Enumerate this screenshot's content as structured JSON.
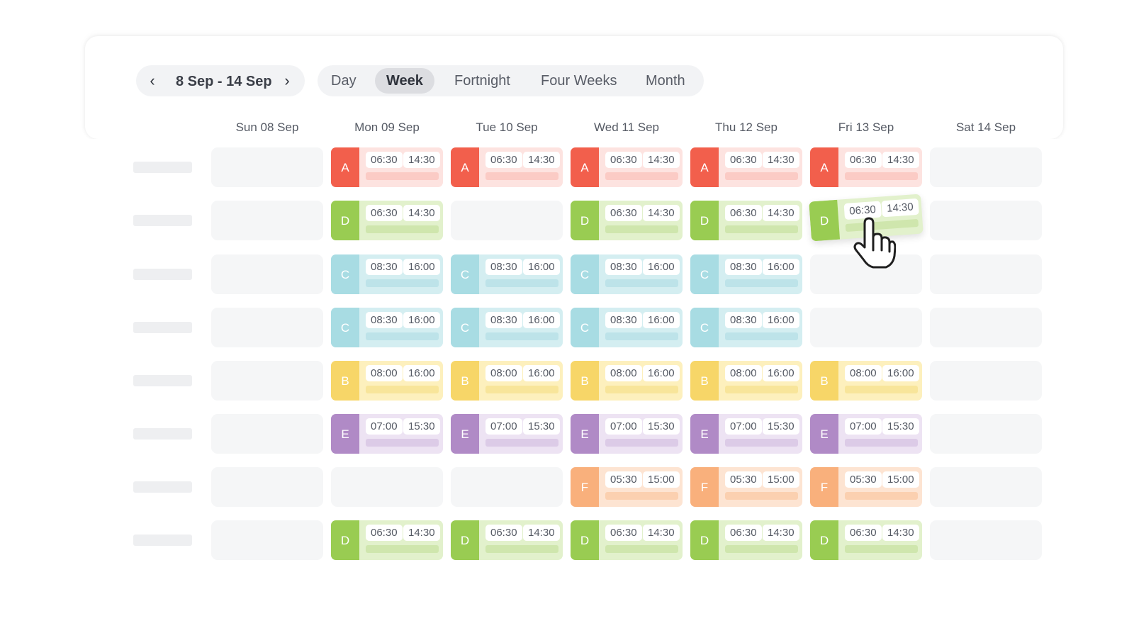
{
  "nav": {
    "prev_icon": "chevron-left-icon",
    "range": "8 Sep - 14 Sep",
    "next_icon": "chevron-right-icon"
  },
  "views": [
    "Day",
    "Week",
    "Fortnight",
    "Four Weeks",
    "Month"
  ],
  "active_view": "Week",
  "days": [
    "Sun 08 Sep",
    "Mon 09 Sep",
    "Tue 10 Sep",
    "Wed 11 Sep",
    "Thu 12 Sep",
    "Fri 13 Sep",
    "Sat 14 Sep"
  ],
  "shift_types": {
    "A": {
      "accent": "#f25f4c",
      "bg": "#fde3e0",
      "bar": "#fbcbc5"
    },
    "D": {
      "accent": "#99cc52",
      "bg": "#e2f1cc",
      "bar": "#cfe6ad"
    },
    "C": {
      "accent": "#a8dce3",
      "bg": "#d4eef1",
      "bar": "#bde3e9"
    },
    "B": {
      "accent": "#f7d668",
      "bg": "#fdf0bd",
      "bar": "#f8e59a"
    },
    "E": {
      "accent": "#b08ac6",
      "bg": "#ede3f3",
      "bar": "#dccbe7"
    },
    "F": {
      "accent": "#f9b07c",
      "bg": "#fde4d2",
      "bar": "#fbd0b0"
    }
  },
  "rows": [
    [
      null,
      {
        "type": "A",
        "start": "06:30",
        "end": "14:30"
      },
      {
        "type": "A",
        "start": "06:30",
        "end": "14:30"
      },
      {
        "type": "A",
        "start": "06:30",
        "end": "14:30"
      },
      {
        "type": "A",
        "start": "06:30",
        "end": "14:30"
      },
      {
        "type": "A",
        "start": "06:30",
        "end": "14:30"
      },
      null
    ],
    [
      null,
      {
        "type": "D",
        "start": "06:30",
        "end": "14:30"
      },
      null,
      {
        "type": "D",
        "start": "06:30",
        "end": "14:30"
      },
      {
        "type": "D",
        "start": "06:30",
        "end": "14:30"
      },
      {
        "type": "D",
        "start": "06:30",
        "end": "14:30",
        "dragging": true
      },
      null
    ],
    [
      null,
      {
        "type": "C",
        "start": "08:30",
        "end": "16:00"
      },
      {
        "type": "C",
        "start": "08:30",
        "end": "16:00"
      },
      {
        "type": "C",
        "start": "08:30",
        "end": "16:00"
      },
      {
        "type": "C",
        "start": "08:30",
        "end": "16:00"
      },
      null,
      null
    ],
    [
      null,
      {
        "type": "C",
        "start": "08:30",
        "end": "16:00"
      },
      {
        "type": "C",
        "start": "08:30",
        "end": "16:00"
      },
      {
        "type": "C",
        "start": "08:30",
        "end": "16:00"
      },
      {
        "type": "C",
        "start": "08:30",
        "end": "16:00"
      },
      null,
      null
    ],
    [
      null,
      {
        "type": "B",
        "start": "08:00",
        "end": "16:00"
      },
      {
        "type": "B",
        "start": "08:00",
        "end": "16:00"
      },
      {
        "type": "B",
        "start": "08:00",
        "end": "16:00"
      },
      {
        "type": "B",
        "start": "08:00",
        "end": "16:00"
      },
      {
        "type": "B",
        "start": "08:00",
        "end": "16:00"
      },
      null
    ],
    [
      null,
      {
        "type": "E",
        "start": "07:00",
        "end": "15:30"
      },
      {
        "type": "E",
        "start": "07:00",
        "end": "15:30"
      },
      {
        "type": "E",
        "start": "07:00",
        "end": "15:30"
      },
      {
        "type": "E",
        "start": "07:00",
        "end": "15:30"
      },
      {
        "type": "E",
        "start": "07:00",
        "end": "15:30"
      },
      null
    ],
    [
      null,
      null,
      null,
      {
        "type": "F",
        "start": "05:30",
        "end": "15:00"
      },
      {
        "type": "F",
        "start": "05:30",
        "end": "15:00"
      },
      {
        "type": "F",
        "start": "05:30",
        "end": "15:00"
      },
      null
    ],
    [
      null,
      {
        "type": "D",
        "start": "06:30",
        "end": "14:30"
      },
      {
        "type": "D",
        "start": "06:30",
        "end": "14:30"
      },
      {
        "type": "D",
        "start": "06:30",
        "end": "14:30"
      },
      {
        "type": "D",
        "start": "06:30",
        "end": "14:30"
      },
      {
        "type": "D",
        "start": "06:30",
        "end": "14:30"
      },
      null
    ]
  ],
  "cursor_icon": "hand-pointer-icon"
}
